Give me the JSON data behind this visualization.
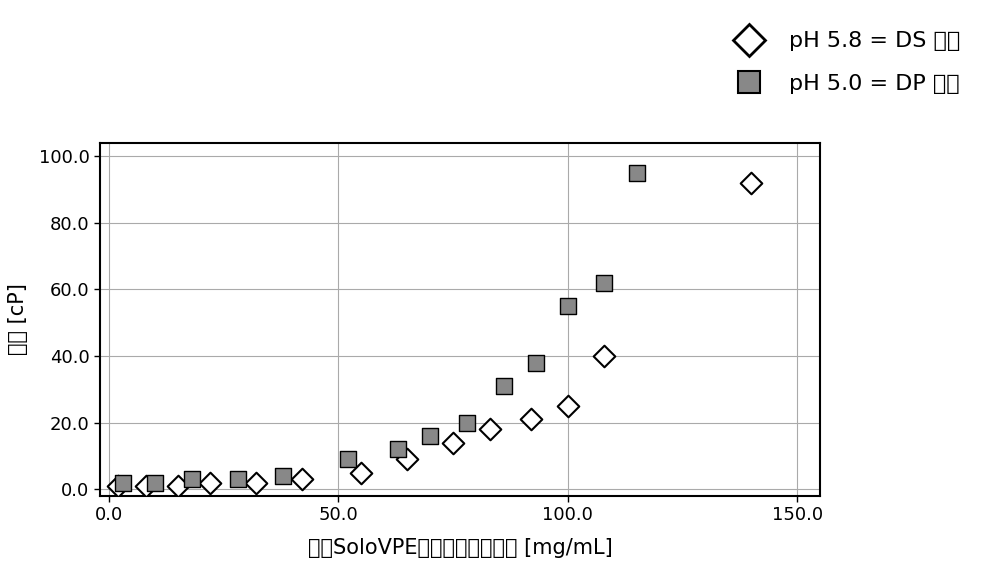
{
  "ph58_x": [
    2,
    8,
    15,
    22,
    32,
    42,
    55,
    65,
    75,
    83,
    92,
    100,
    108,
    140
  ],
  "ph58_y": [
    1,
    1,
    1,
    2,
    2,
    3,
    5,
    9,
    14,
    18,
    21,
    25,
    40,
    92
  ],
  "ph50_x": [
    3,
    10,
    18,
    28,
    38,
    52,
    63,
    70,
    78,
    86,
    93,
    100,
    108,
    115
  ],
  "ph50_y": [
    2,
    2,
    3,
    3,
    4,
    9,
    12,
    16,
    20,
    31,
    38,
    55,
    62,
    95
  ],
  "xlabel": "通过SoloVPE获得的蛋白质浓度 [mg/mL]",
  "ylabel": "粘度 [cP]",
  "legend_label_58": "pH 5.8 = DS 制剂",
  "legend_label_50": "pH 5.0 = DP 制剂",
  "xlim": [
    -2.0,
    155.0
  ],
  "ylim": [
    -2.0,
    104.0
  ],
  "xticks": [
    0.0,
    50.0,
    100.0,
    150.0
  ],
  "yticks": [
    0.0,
    20.0,
    40.0,
    60.0,
    80.0,
    100.0
  ],
  "grid_color": "#aaaaaa",
  "bg_color": "#ffffff",
  "marker_color_58": "#ffffff",
  "marker_edge_58": "#000000",
  "marker_color_50": "#888888",
  "marker_edge_50": "#000000",
  "marker_size": 11,
  "legend_marker_size": 16,
  "fontsize_tick": 13,
  "fontsize_label": 15,
  "fontsize_legend": 16
}
